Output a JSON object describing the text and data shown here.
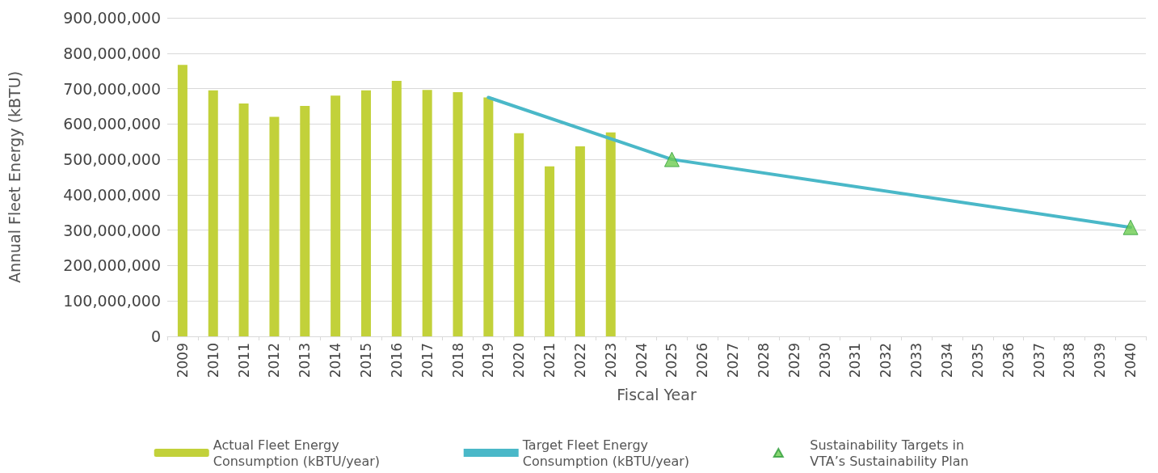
{
  "chart_data": {
    "type": "bar",
    "xlabel": "Fiscal Year",
    "ylabel": "Annual Fleet Energy (kBTU)",
    "categories": [
      "2009",
      "2010",
      "2011",
      "2012",
      "2013",
      "2014",
      "2015",
      "2016",
      "2017",
      "2018",
      "2019",
      "2020",
      "2021",
      "2022",
      "2023",
      "2024",
      "2025",
      "2026",
      "2027",
      "2028",
      "2029",
      "2030",
      "2031",
      "2032",
      "2033",
      "2034",
      "2035",
      "2036",
      "2037",
      "2038",
      "2039",
      "2040"
    ],
    "series": [
      {
        "name": "Actual Fleet Energy Consumption (kBTU/year)",
        "color": "#c2d13a",
        "values": [
          767000000,
          695000000,
          658000000,
          620000000,
          651000000,
          680000000,
          695000000,
          722000000,
          696000000,
          690000000,
          675000000,
          574000000,
          480000000,
          537000000,
          576000000,
          null,
          null,
          null,
          null,
          null,
          null,
          null,
          null,
          null,
          null,
          null,
          null,
          null,
          null,
          null,
          null,
          null
        ]
      },
      {
        "name": "Target Fleet Energy Consumption (kBTU/year)",
        "type": "line",
        "color": "#4ab8c8",
        "marker": "none",
        "values": [
          null,
          null,
          null,
          null,
          null,
          null,
          null,
          null,
          null,
          null,
          675000000,
          null,
          null,
          null,
          null,
          null,
          500000000,
          null,
          null,
          null,
          null,
          null,
          null,
          null,
          null,
          null,
          null,
          null,
          null,
          null,
          null,
          308000000
        ]
      },
      {
        "name": "Sustainability Targets in VTA’s Sustainability Plan",
        "type": "scatter",
        "color": "#6dcc50",
        "marker": "triangle",
        "values": [
          null,
          null,
          null,
          null,
          null,
          null,
          null,
          null,
          null,
          null,
          null,
          null,
          null,
          null,
          null,
          null,
          500000000,
          null,
          null,
          null,
          null,
          null,
          null,
          null,
          null,
          null,
          null,
          null,
          null,
          null,
          null,
          308000000
        ]
      }
    ],
    "ylim": [
      0,
      900000000
    ],
    "yticks": [
      {
        "value": 0,
        "label": "0"
      },
      {
        "value": 100000000,
        "label": "100,000,000"
      },
      {
        "value": 200000000,
        "label": "200,000,000"
      },
      {
        "value": 300000000,
        "label": "300,000,000"
      },
      {
        "value": 400000000,
        "label": "400,000,000"
      },
      {
        "value": 500000000,
        "label": "500,000,000"
      },
      {
        "value": 600000000,
        "label": "600,000,000"
      },
      {
        "value": 700000000,
        "label": "700,000,000"
      },
      {
        "value": 800000000,
        "label": "800,000,000"
      },
      {
        "value": 900000000,
        "label": "900,000,000"
      }
    ],
    "grid": "y",
    "legend": "bottom"
  }
}
